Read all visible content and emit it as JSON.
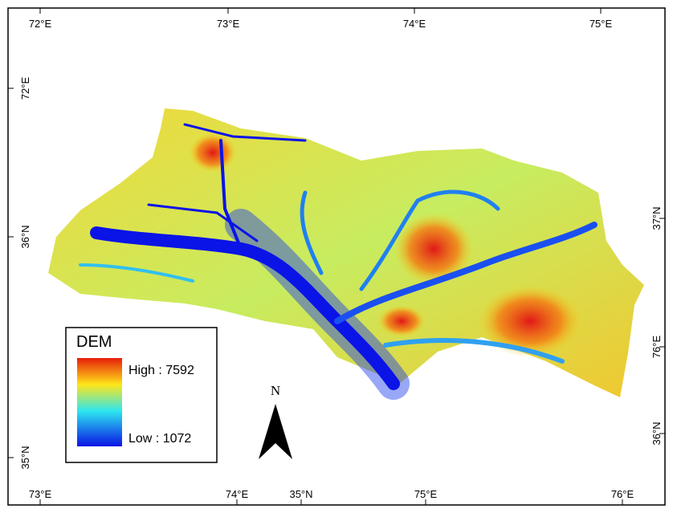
{
  "frame": {
    "top_labels": [
      "72°E",
      "73°E",
      "74°E",
      "75°E"
    ],
    "left_labels": [
      "72°E",
      "36°N",
      "35°N"
    ],
    "right_labels": [
      "37°N",
      "76°E",
      "36°N"
    ],
    "bottom_labels": [
      "73°E",
      "74°E",
      "35°N",
      "75°E",
      "76°E"
    ]
  },
  "legend": {
    "title": "DEM",
    "high": "High : 7592",
    "low": "Low : 1072"
  },
  "north_arrow": {
    "label": "N"
  }
}
